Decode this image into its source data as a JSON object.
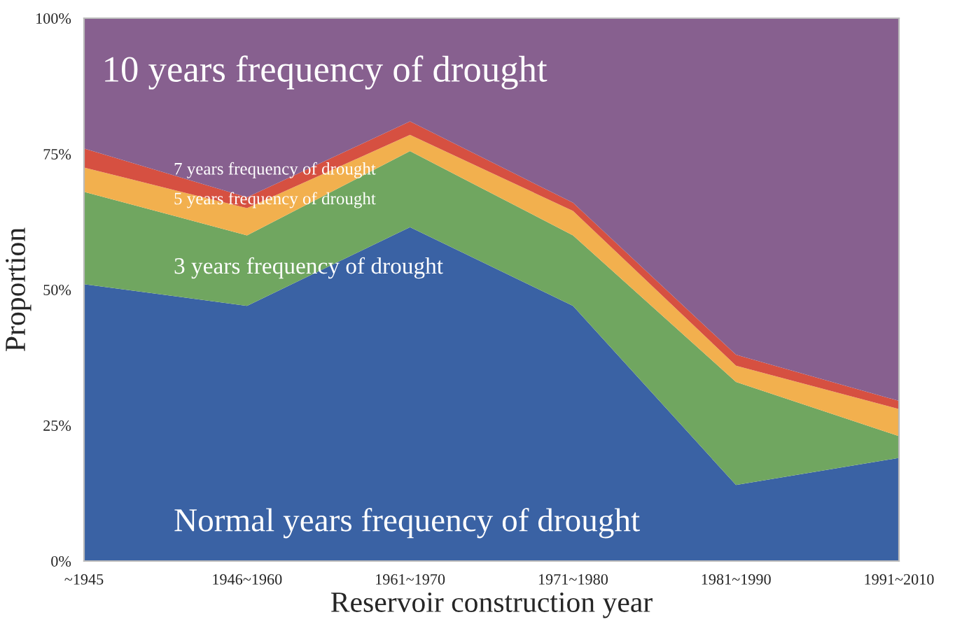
{
  "chart_data": {
    "type": "area",
    "stacked": true,
    "xlabel": "Reservoir construction year",
    "ylabel": "Proportion",
    "categories": [
      "~1945",
      "1946~1960",
      "1961~1970",
      "1971~1980",
      "1981~1990",
      "1991~2010"
    ],
    "series": [
      {
        "name": "Normal years frequency of drought",
        "color": "#3a62a4",
        "values": [
          51,
          47,
          61.5,
          47,
          14,
          19
        ]
      },
      {
        "name": "3 years frequency of drought",
        "color": "#70a660",
        "values": [
          17,
          13,
          14,
          13,
          19,
          4
        ]
      },
      {
        "name": "5 years frequency of drought",
        "color": "#f2b04e",
        "values": [
          4.5,
          5,
          3,
          4.5,
          3,
          5
        ]
      },
      {
        "name": "7 years frequency of drought",
        "color": "#d65041",
        "values": [
          3.5,
          2,
          2.5,
          1.5,
          2,
          1.5
        ]
      },
      {
        "name": "10 years frequency of drought",
        "color": "#87608f",
        "values": [
          24,
          33,
          19,
          34,
          62,
          70.5
        ]
      }
    ],
    "ylim": [
      0,
      100
    ],
    "yticks": [
      {
        "value": 0,
        "label": "0%"
      },
      {
        "value": 25,
        "label": "25%"
      },
      {
        "value": 50,
        "label": "50%"
      },
      {
        "value": 75,
        "label": "75%"
      },
      {
        "value": 100,
        "label": "100%"
      }
    ],
    "grid": false,
    "legend": false
  }
}
